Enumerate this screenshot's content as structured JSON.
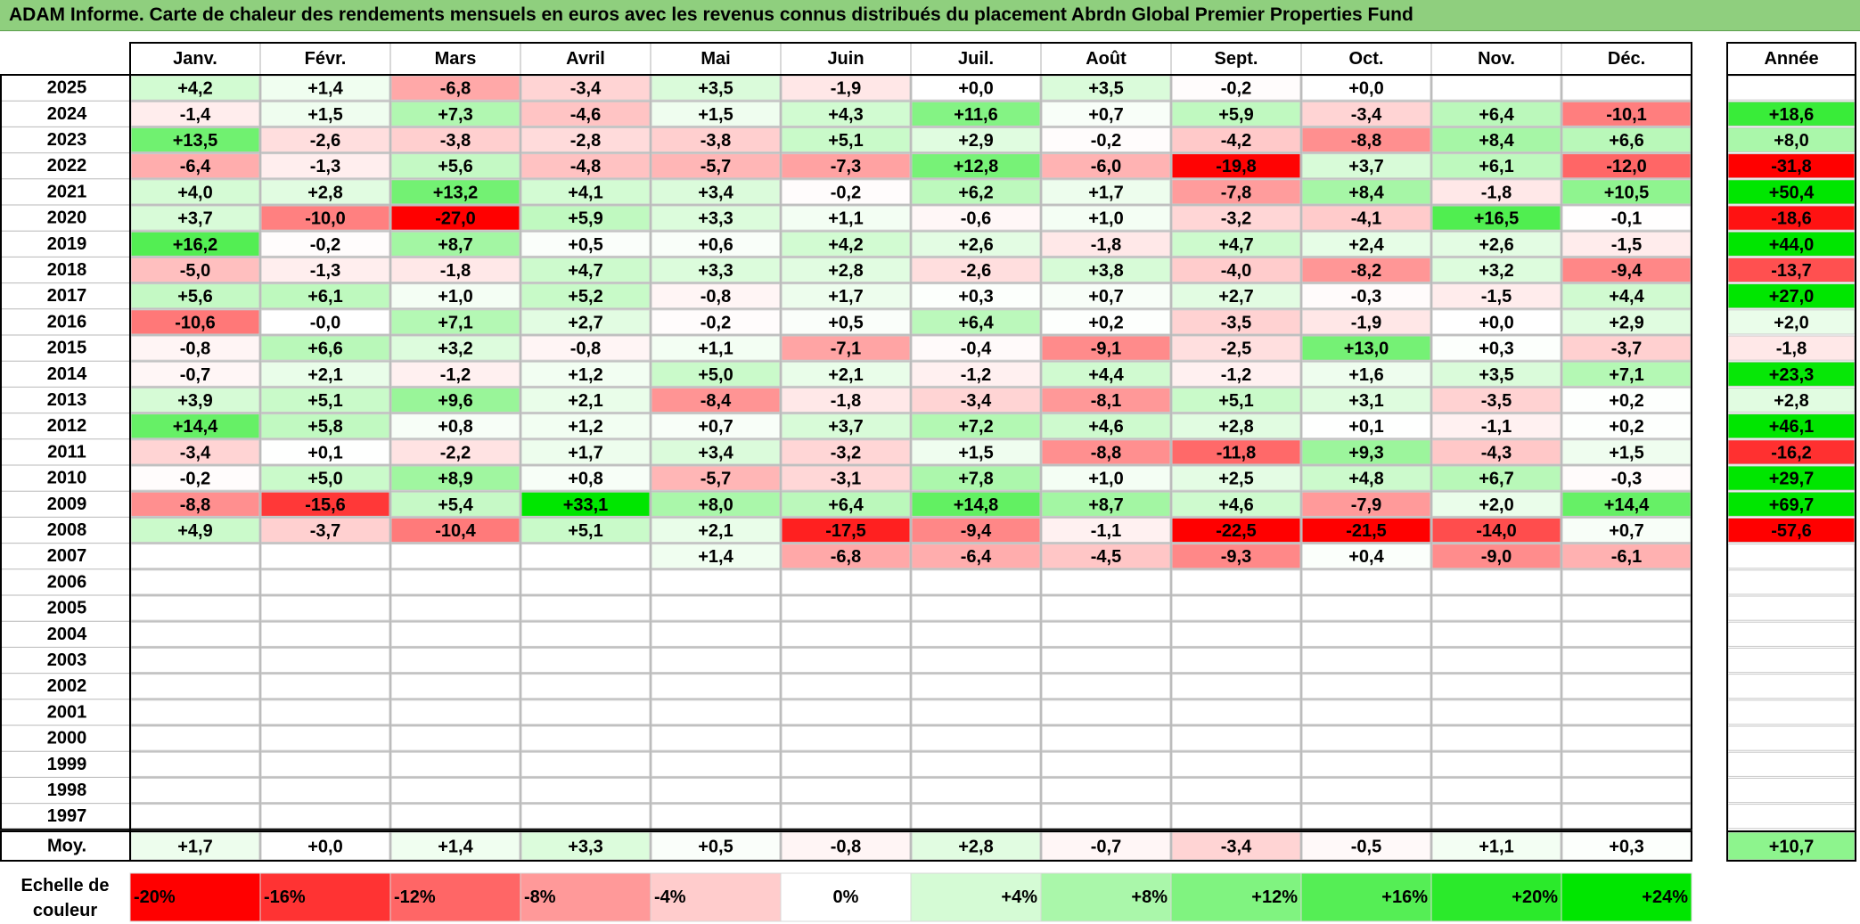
{
  "title": "ADAM Informe. Carte de chaleur des rendements mensuels en euros avec les revenus connus distribués du placement Abrdn Global Premier Properties Fund",
  "chart_data": {
    "type": "heatmap",
    "months": [
      "Janv.",
      "Févr.",
      "Mars",
      "Avril",
      "Mai",
      "Juin",
      "Juil.",
      "Août",
      "Sept.",
      "Oct.",
      "Nov.",
      "Déc."
    ],
    "year_header": "Année",
    "avg_label": "Moy.",
    "rows": [
      {
        "year": "2025",
        "values": [
          "+4,2",
          "+1,4",
          "-6,8",
          "-3,4",
          "+3,5",
          "-1,9",
          "+0,0",
          "+3,5",
          "-0,2",
          "+0,0",
          "",
          ""
        ],
        "annual": ""
      },
      {
        "year": "2024",
        "values": [
          "-1,4",
          "+1,5",
          "+7,3",
          "-4,6",
          "+1,5",
          "+4,3",
          "+11,6",
          "+0,7",
          "+5,9",
          "-3,4",
          "+6,4",
          "-10,1"
        ],
        "annual": "+18,6"
      },
      {
        "year": "2023",
        "values": [
          "+13,5",
          "-2,6",
          "-3,8",
          "-2,8",
          "-3,8",
          "+5,1",
          "+2,9",
          "-0,2",
          "-4,2",
          "-8,8",
          "+8,4",
          "+6,6"
        ],
        "annual": "+8,0"
      },
      {
        "year": "2022",
        "values": [
          "-6,4",
          "-1,3",
          "+5,6",
          "-4,8",
          "-5,7",
          "-7,3",
          "+12,8",
          "-6,0",
          "-19,8",
          "+3,7",
          "+6,1",
          "-12,0"
        ],
        "annual": "-31,8"
      },
      {
        "year": "2021",
        "values": [
          "+4,0",
          "+2,8",
          "+13,2",
          "+4,1",
          "+3,4",
          "-0,2",
          "+6,2",
          "+1,7",
          "-7,8",
          "+8,4",
          "-1,8",
          "+10,5"
        ],
        "annual": "+50,4"
      },
      {
        "year": "2020",
        "values": [
          "+3,7",
          "-10,0",
          "-27,0",
          "+5,9",
          "+3,3",
          "+1,1",
          "-0,6",
          "+1,0",
          "-3,2",
          "-4,1",
          "+16,5",
          "-0,1"
        ],
        "annual": "-18,6"
      },
      {
        "year": "2019",
        "values": [
          "+16,2",
          "-0,2",
          "+8,7",
          "+0,5",
          "+0,6",
          "+4,2",
          "+2,6",
          "-1,8",
          "+4,7",
          "+2,4",
          "+2,6",
          "-1,5"
        ],
        "annual": "+44,0"
      },
      {
        "year": "2018",
        "values": [
          "-5,0",
          "-1,3",
          "-1,8",
          "+4,7",
          "+3,3",
          "+2,8",
          "-2,6",
          "+3,8",
          "-4,0",
          "-8,2",
          "+3,2",
          "-9,4"
        ],
        "annual": "-13,7"
      },
      {
        "year": "2017",
        "values": [
          "+5,6",
          "+6,1",
          "+1,0",
          "+5,2",
          "-0,8",
          "+1,7",
          "+0,3",
          "+0,7",
          "+2,7",
          "-0,3",
          "-1,5",
          "+4,4"
        ],
        "annual": "+27,0"
      },
      {
        "year": "2016",
        "values": [
          "-10,6",
          "-0,0",
          "+7,1",
          "+2,7",
          "-0,2",
          "+0,5",
          "+6,4",
          "+0,2",
          "-3,5",
          "-1,9",
          "+0,0",
          "+2,9"
        ],
        "annual": "+2,0"
      },
      {
        "year": "2015",
        "values": [
          "-0,8",
          "+6,6",
          "+3,2",
          "-0,8",
          "+1,1",
          "-7,1",
          "-0,4",
          "-9,1",
          "-2,5",
          "+13,0",
          "+0,3",
          "-3,7"
        ],
        "annual": "-1,8"
      },
      {
        "year": "2014",
        "values": [
          "-0,7",
          "+2,1",
          "-1,2",
          "+1,2",
          "+5,0",
          "+2,1",
          "-1,2",
          "+4,4",
          "-1,2",
          "+1,6",
          "+3,5",
          "+7,1"
        ],
        "annual": "+23,3"
      },
      {
        "year": "2013",
        "values": [
          "+3,9",
          "+5,1",
          "+9,6",
          "+2,1",
          "-8,4",
          "-1,8",
          "-3,4",
          "-8,1",
          "+5,1",
          "+3,1",
          "-3,5",
          "+0,2"
        ],
        "annual": "+2,8"
      },
      {
        "year": "2012",
        "values": [
          "+14,4",
          "+5,8",
          "+0,8",
          "+1,2",
          "+0,7",
          "+3,7",
          "+7,2",
          "+4,6",
          "+2,8",
          "+0,1",
          "-1,1",
          "+0,2"
        ],
        "annual": "+46,1"
      },
      {
        "year": "2011",
        "values": [
          "-3,4",
          "+0,1",
          "-2,2",
          "+1,7",
          "+3,4",
          "-3,2",
          "+1,5",
          "-8,8",
          "-11,8",
          "+9,3",
          "-4,3",
          "+1,5"
        ],
        "annual": "-16,2"
      },
      {
        "year": "2010",
        "values": [
          "-0,2",
          "+5,0",
          "+8,9",
          "+0,8",
          "-5,7",
          "-3,1",
          "+7,8",
          "+1,0",
          "+2,5",
          "+4,8",
          "+6,7",
          "-0,3"
        ],
        "annual": "+29,7"
      },
      {
        "year": "2009",
        "values": [
          "-8,8",
          "-15,6",
          "+5,4",
          "+33,1",
          "+8,0",
          "+6,4",
          "+14,8",
          "+8,7",
          "+4,6",
          "-7,9",
          "+2,0",
          "+14,4"
        ],
        "annual": "+69,7"
      },
      {
        "year": "2008",
        "values": [
          "+4,9",
          "-3,7",
          "-10,4",
          "+5,1",
          "+2,1",
          "-17,5",
          "-9,4",
          "-1,1",
          "-22,5",
          "-21,5",
          "-14,0",
          "+0,7"
        ],
        "annual": "-57,6"
      },
      {
        "year": "2007",
        "values": [
          "",
          "",
          "",
          "",
          "+1,4",
          "-6,8",
          "-6,4",
          "-4,5",
          "-9,3",
          "+0,4",
          "-9,0",
          "-6,1"
        ],
        "annual": ""
      },
      {
        "year": "2006",
        "values": [
          "",
          "",
          "",
          "",
          "",
          "",
          "",
          "",
          "",
          "",
          "",
          ""
        ],
        "annual": ""
      },
      {
        "year": "2005",
        "values": [
          "",
          "",
          "",
          "",
          "",
          "",
          "",
          "",
          "",
          "",
          "",
          ""
        ],
        "annual": ""
      },
      {
        "year": "2004",
        "values": [
          "",
          "",
          "",
          "",
          "",
          "",
          "",
          "",
          "",
          "",
          "",
          ""
        ],
        "annual": ""
      },
      {
        "year": "2003",
        "values": [
          "",
          "",
          "",
          "",
          "",
          "",
          "",
          "",
          "",
          "",
          "",
          ""
        ],
        "annual": ""
      },
      {
        "year": "2002",
        "values": [
          "",
          "",
          "",
          "",
          "",
          "",
          "",
          "",
          "",
          "",
          "",
          ""
        ],
        "annual": ""
      },
      {
        "year": "2001",
        "values": [
          "",
          "",
          "",
          "",
          "",
          "",
          "",
          "",
          "",
          "",
          "",
          ""
        ],
        "annual": ""
      },
      {
        "year": "2000",
        "values": [
          "",
          "",
          "",
          "",
          "",
          "",
          "",
          "",
          "",
          "",
          "",
          ""
        ],
        "annual": ""
      },
      {
        "year": "1999",
        "values": [
          "",
          "",
          "",
          "",
          "",
          "",
          "",
          "",
          "",
          "",
          "",
          ""
        ],
        "annual": ""
      },
      {
        "year": "1998",
        "values": [
          "",
          "",
          "",
          "",
          "",
          "",
          "",
          "",
          "",
          "",
          "",
          ""
        ],
        "annual": ""
      },
      {
        "year": "1997",
        "values": [
          "",
          "",
          "",
          "",
          "",
          "",
          "",
          "",
          "",
          "",
          "",
          ""
        ],
        "annual": ""
      }
    ],
    "averages": [
      "+1,7",
      "+0,0",
      "+1,4",
      "+3,3",
      "+0,5",
      "-0,8",
      "+2,8",
      "-0,7",
      "-3,4",
      "-0,5",
      "+1,1",
      "+0,3"
    ],
    "average_annual": "+10,7",
    "scale_label": [
      "Echelle de",
      "couleur"
    ],
    "scale": [
      "-20%",
      "-16%",
      "-12%",
      "-8%",
      "-4%",
      "0%",
      "+4%",
      "+8%",
      "+12%",
      "+16%",
      "+20%",
      "+24%"
    ],
    "colors": {
      "negative_max": "#ff0000",
      "neutral": "#ffffff",
      "positive_max": "#00e600",
      "title_bar": "#8fcf7e",
      "grid": "#b0b0b0",
      "frame": "#000000"
    }
  }
}
